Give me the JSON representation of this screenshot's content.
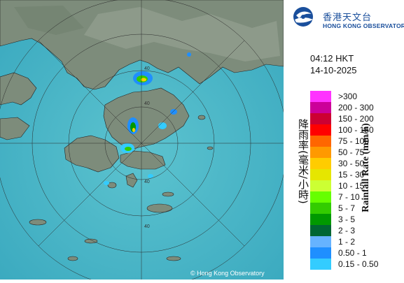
{
  "header": {
    "org_name_zh": "香港天文台",
    "org_name_en": "HONG KONG OBSERVATORY"
  },
  "timestamp": {
    "time": "04:12 HKT",
    "date": "14-10-2025"
  },
  "legend": {
    "title_zh": "降雨率(毫米/小時)",
    "title_en": "Rainfall Rate (mm/h)",
    "items": [
      {
        "label": ">300",
        "color": "#ff33ff"
      },
      {
        "label": "200 - 300",
        "color": "#cc0099"
      },
      {
        "label": "150 - 200",
        "color": "#cc0033"
      },
      {
        "label": "100 - 150",
        "color": "#ff0000"
      },
      {
        "label": "75 - 100",
        "color": "#ff6600"
      },
      {
        "label": "50 - 75",
        "color": "#ff9900"
      },
      {
        "label": "30 - 50",
        "color": "#ffcc00"
      },
      {
        "label": "15 - 30",
        "color": "#e6e600"
      },
      {
        "label": "10 - 15",
        "color": "#ccff33"
      },
      {
        "label": "7 - 10",
        "color": "#66ff00"
      },
      {
        "label": "5 - 7",
        "color": "#33cc00"
      },
      {
        "label": "3 - 5",
        "color": "#009900"
      },
      {
        "label": "2 - 3",
        "color": "#006633"
      },
      {
        "label": "1 - 2",
        "color": "#66b3ff"
      },
      {
        "label": "0.50 - 1",
        "color": "#1f8fff"
      },
      {
        "label": "0.15 - 0.50",
        "color": "#33ccff"
      }
    ]
  },
  "map": {
    "copyright": "© Hong Kong Observatory",
    "range_ring_labels": [
      "40",
      "40",
      "40",
      "40"
    ],
    "sea_color": "#4fb8c8",
    "land_color": "#7c8c7a"
  }
}
